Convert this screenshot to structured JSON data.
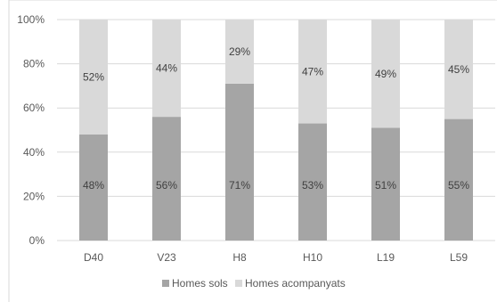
{
  "chart_data": {
    "type": "bar",
    "stacked": true,
    "percent": true,
    "categories": [
      "D40",
      "V23",
      "H8",
      "H10",
      "L19",
      "L59"
    ],
    "series": [
      {
        "name": "Homes sols",
        "values": [
          48,
          56,
          71,
          53,
          51,
          55
        ],
        "labels": [
          "48%",
          "56%",
          "71%",
          "53%",
          "51%",
          "55%"
        ],
        "color": "#a5a5a5"
      },
      {
        "name": "Homes acompanyats",
        "values": [
          52,
          44,
          29,
          47,
          49,
          45
        ],
        "labels": [
          "52%",
          "44%",
          "29%",
          "47%",
          "49%",
          "45%"
        ],
        "color": "#d9d9d9"
      }
    ],
    "yticks": [
      "0%",
      "20%",
      "40%",
      "60%",
      "80%",
      "100%"
    ],
    "ylim": [
      0,
      100
    ],
    "grid": true,
    "legend": "bottom",
    "title": "",
    "xlabel": "",
    "ylabel": ""
  }
}
